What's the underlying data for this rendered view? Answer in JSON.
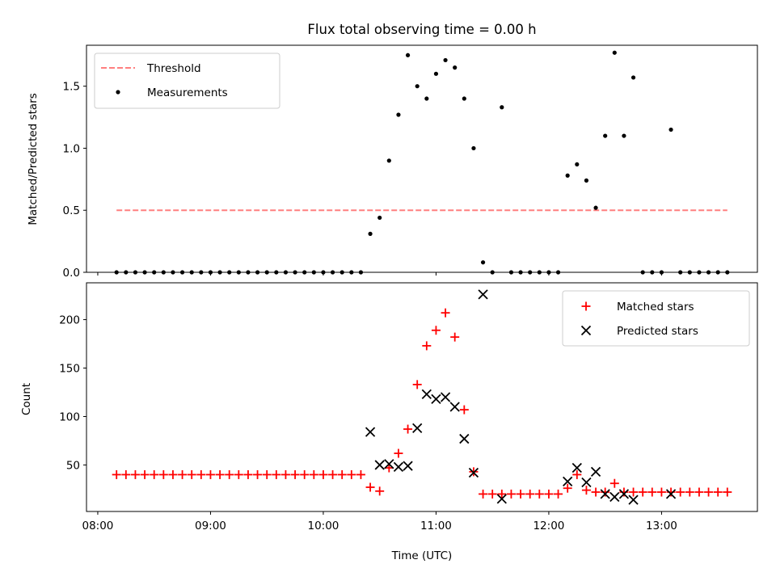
{
  "chart_data": [
    {
      "type": "scatter",
      "title": "Flux total observing time = 0.00 h",
      "xlabel": "",
      "ylabel": "Matched/Predicted stars",
      "xlim": [
        "07:54",
        "13:51"
      ],
      "ylim": [
        0.0,
        1.83
      ],
      "yticks": [
        0.0,
        0.5,
        1.0,
        1.5
      ],
      "yticklabels": [
        "0.0",
        "0.5",
        "1.0",
        "1.5"
      ],
      "legend": "top-left",
      "threshold": {
        "name": "Threshold",
        "value": 0.5,
        "x_start": "08:10",
        "x_end": "13:35",
        "color": "#ff7f7f",
        "style": "dashed"
      },
      "series": [
        {
          "name": "Measurements",
          "color": "#000000",
          "marker": "dot",
          "points": [
            [
              "08:10",
              0.0
            ],
            [
              "08:15",
              0.0
            ],
            [
              "08:20",
              0.0
            ],
            [
              "08:25",
              0.0
            ],
            [
              "08:30",
              0.0
            ],
            [
              "08:35",
              0.0
            ],
            [
              "08:40",
              0.0
            ],
            [
              "08:45",
              0.0
            ],
            [
              "08:50",
              0.0
            ],
            [
              "08:55",
              0.0
            ],
            [
              "09:00",
              0.0
            ],
            [
              "09:05",
              0.0
            ],
            [
              "09:10",
              0.0
            ],
            [
              "09:15",
              0.0
            ],
            [
              "09:20",
              0.0
            ],
            [
              "09:25",
              0.0
            ],
            [
              "09:30",
              0.0
            ],
            [
              "09:35",
              0.0
            ],
            [
              "09:40",
              0.0
            ],
            [
              "09:45",
              0.0
            ],
            [
              "09:50",
              0.0
            ],
            [
              "09:55",
              0.0
            ],
            [
              "10:00",
              0.0
            ],
            [
              "10:05",
              0.0
            ],
            [
              "10:10",
              0.0
            ],
            [
              "10:15",
              0.0
            ],
            [
              "10:20",
              0.0
            ],
            [
              "10:25",
              0.31
            ],
            [
              "10:30",
              0.44
            ],
            [
              "10:35",
              0.9
            ],
            [
              "10:40",
              1.27
            ],
            [
              "10:45",
              1.75
            ],
            [
              "10:50",
              1.5
            ],
            [
              "10:55",
              1.4
            ],
            [
              "11:00",
              1.6
            ],
            [
              "11:05",
              1.71
            ],
            [
              "11:10",
              1.65
            ],
            [
              "11:15",
              1.4
            ],
            [
              "11:20",
              1.0
            ],
            [
              "11:25",
              0.08
            ],
            [
              "11:30",
              0.0
            ],
            [
              "11:35",
              1.33
            ],
            [
              "11:40",
              0.0
            ],
            [
              "11:45",
              0.0
            ],
            [
              "11:50",
              0.0
            ],
            [
              "11:55",
              0.0
            ],
            [
              "12:00",
              0.0
            ],
            [
              "12:05",
              0.0
            ],
            [
              "12:10",
              0.78
            ],
            [
              "12:15",
              0.87
            ],
            [
              "12:20",
              0.74
            ],
            [
              "12:25",
              0.52
            ],
            [
              "12:30",
              1.1
            ],
            [
              "12:35",
              1.77
            ],
            [
              "12:40",
              1.1
            ],
            [
              "12:45",
              1.57
            ],
            [
              "12:50",
              0.0
            ],
            [
              "12:55",
              0.0
            ],
            [
              "13:00",
              0.0
            ],
            [
              "13:05",
              1.15
            ],
            [
              "13:10",
              0.0
            ],
            [
              "13:15",
              0.0
            ],
            [
              "13:20",
              0.0
            ],
            [
              "13:25",
              0.0
            ],
            [
              "13:30",
              0.0
            ],
            [
              "13:35",
              0.0
            ]
          ]
        }
      ]
    },
    {
      "type": "scatter",
      "title": "",
      "xlabel": "Time (UTC)",
      "ylabel": "Count",
      "xlim": [
        "07:54",
        "13:51"
      ],
      "ylim": [
        2,
        238
      ],
      "xticks": [
        "08:00",
        "09:00",
        "10:00",
        "11:00",
        "12:00",
        "13:00"
      ],
      "xticklabels": [
        "08:00",
        "09:00",
        "10:00",
        "11:00",
        "12:00",
        "13:00"
      ],
      "yticks": [
        50,
        100,
        150,
        200
      ],
      "yticklabels": [
        "50",
        "100",
        "150",
        "200"
      ],
      "legend": "top-right",
      "series": [
        {
          "name": "Matched stars",
          "color": "#ff0000",
          "marker": "plus",
          "points": [
            [
              "08:10",
              40
            ],
            [
              "08:15",
              40
            ],
            [
              "08:20",
              40
            ],
            [
              "08:25",
              40
            ],
            [
              "08:30",
              40
            ],
            [
              "08:35",
              40
            ],
            [
              "08:40",
              40
            ],
            [
              "08:45",
              40
            ],
            [
              "08:50",
              40
            ],
            [
              "08:55",
              40
            ],
            [
              "09:00",
              40
            ],
            [
              "09:05",
              40
            ],
            [
              "09:10",
              40
            ],
            [
              "09:15",
              40
            ],
            [
              "09:20",
              40
            ],
            [
              "09:25",
              40
            ],
            [
              "09:30",
              40
            ],
            [
              "09:35",
              40
            ],
            [
              "09:40",
              40
            ],
            [
              "09:45",
              40
            ],
            [
              "09:50",
              40
            ],
            [
              "09:55",
              40
            ],
            [
              "10:00",
              40
            ],
            [
              "10:05",
              40
            ],
            [
              "10:10",
              40
            ],
            [
              "10:15",
              40
            ],
            [
              "10:20",
              40
            ],
            [
              "10:25",
              27
            ],
            [
              "10:30",
              23
            ],
            [
              "10:35",
              47
            ],
            [
              "10:40",
              62
            ],
            [
              "10:45",
              87
            ],
            [
              "10:50",
              133
            ],
            [
              "10:55",
              173
            ],
            [
              "11:00",
              189
            ],
            [
              "11:05",
              207
            ],
            [
              "11:10",
              182
            ],
            [
              "11:15",
              107
            ],
            [
              "11:20",
              43
            ],
            [
              "11:25",
              20
            ],
            [
              "11:30",
              20
            ],
            [
              "11:35",
              20
            ],
            [
              "11:40",
              20
            ],
            [
              "11:45",
              20
            ],
            [
              "11:50",
              20
            ],
            [
              "11:55",
              20
            ],
            [
              "12:00",
              20
            ],
            [
              "12:05",
              20
            ],
            [
              "12:10",
              26
            ],
            [
              "12:15",
              40
            ],
            [
              "12:20",
              24
            ],
            [
              "12:25",
              22
            ],
            [
              "12:30",
              22
            ],
            [
              "12:35",
              31
            ],
            [
              "12:40",
              22
            ],
            [
              "12:45",
              22
            ],
            [
              "12:50",
              22
            ],
            [
              "12:55",
              22
            ],
            [
              "13:00",
              22
            ],
            [
              "13:05",
              22
            ],
            [
              "13:10",
              22
            ],
            [
              "13:15",
              22
            ],
            [
              "13:20",
              22
            ],
            [
              "13:25",
              22
            ],
            [
              "13:30",
              22
            ],
            [
              "13:35",
              22
            ]
          ]
        },
        {
          "name": "Predicted stars",
          "color": "#000000",
          "marker": "x",
          "points": [
            [
              "10:25",
              84
            ],
            [
              "10:30",
              50
            ],
            [
              "10:35",
              51
            ],
            [
              "10:40",
              48
            ],
            [
              "10:45",
              49
            ],
            [
              "10:50",
              88
            ],
            [
              "10:55",
              123
            ],
            [
              "11:00",
              118
            ],
            [
              "11:05",
              120
            ],
            [
              "11:10",
              110
            ],
            [
              "11:15",
              77
            ],
            [
              "11:20",
              42
            ],
            [
              "11:25",
              226
            ],
            [
              "11:35",
              15
            ],
            [
              "12:10",
              33
            ],
            [
              "12:15",
              47
            ],
            [
              "12:20",
              32
            ],
            [
              "12:25",
              43
            ],
            [
              "12:30",
              20
            ],
            [
              "12:35",
              17
            ],
            [
              "12:40",
              20
            ],
            [
              "12:45",
              14
            ],
            [
              "13:05",
              20
            ]
          ]
        }
      ]
    }
  ]
}
